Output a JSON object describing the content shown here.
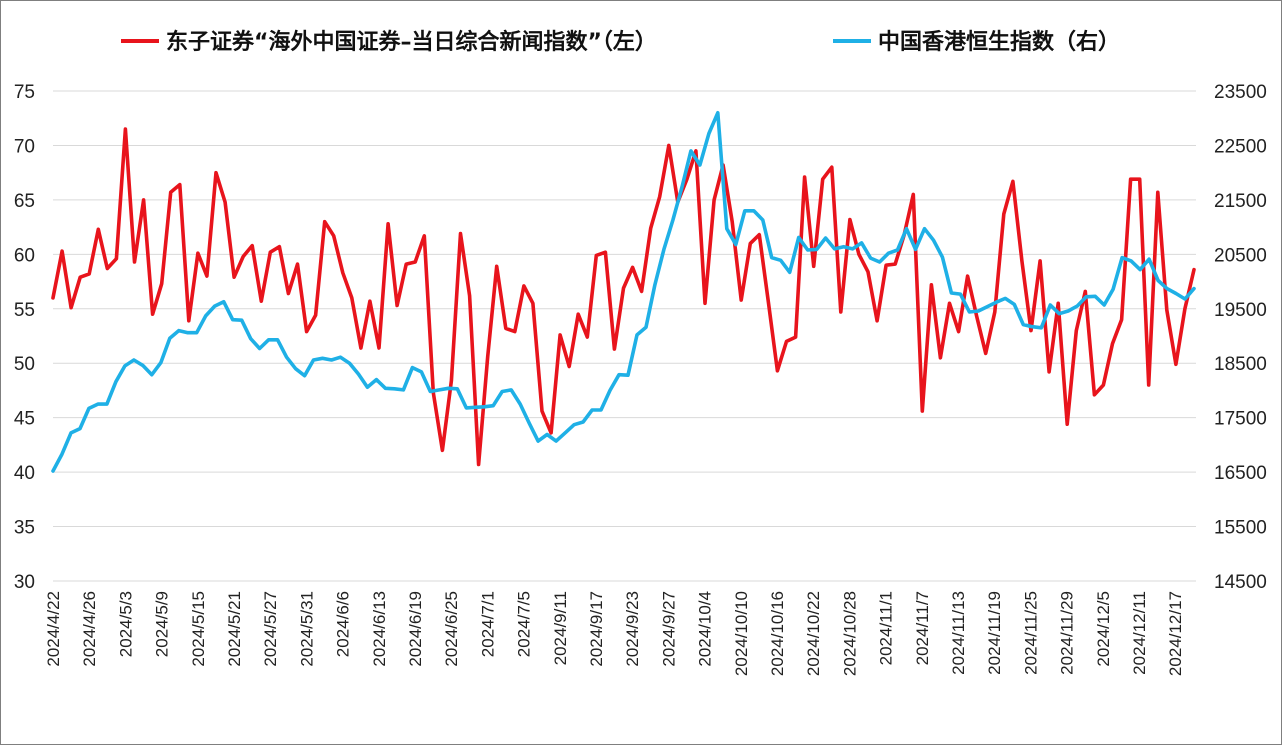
{
  "chart_data": {
    "type": "line",
    "legend_position": "top",
    "grid": true,
    "left_axis": {
      "min": 30,
      "max": 75,
      "ticks": [
        30,
        35,
        40,
        45,
        50,
        55,
        60,
        65,
        70,
        75
      ],
      "tick_labels": [
        "30",
        "35",
        "40",
        "45",
        "50",
        "55",
        "60",
        "65",
        "70",
        "75"
      ]
    },
    "right_axis": {
      "min": 14500,
      "max": 23500,
      "ticks": [
        14500,
        15500,
        16500,
        17500,
        18500,
        19500,
        20500,
        21500,
        22500,
        23500
      ],
      "tick_labels": [
        "14500",
        "15500",
        "16500",
        "17500",
        "18500",
        "19500",
        "20500",
        "21500",
        "22500",
        "23500"
      ]
    },
    "x_labels": [
      "2024/4/22",
      "2024/4/26",
      "2024/5/3",
      "2024/5/9",
      "2024/5/15",
      "2024/5/21",
      "2024/5/27",
      "2024/5/31",
      "2024/6/6",
      "2024/6/13",
      "2024/6/19",
      "2024/6/25",
      "2024/7/1",
      "2024/7/5",
      "2024/9/11",
      "2024/9/17",
      "2024/9/23",
      "2024/9/27",
      "2024/10/4",
      "2024/10/10",
      "2024/10/16",
      "2024/10/22",
      "2024/10/28",
      "2024/11/1",
      "2024/11/7",
      "2024/11/13",
      "2024/11/19",
      "2024/11/25",
      "2024/11/29",
      "2024/12/5",
      "2024/12/11",
      "2024/12/17"
    ],
    "series": [
      {
        "name": "东子证券“海外中国证券–当日综合新闻指数”（左）",
        "axis": "left",
        "color": "#e8141c",
        "values": [
          56.0,
          60.3,
          55.1,
          57.9,
          58.2,
          62.3,
          58.7,
          59.6,
          71.5,
          59.3,
          65.0,
          54.5,
          57.3,
          65.7,
          66.4,
          53.9,
          60.1,
          58.0,
          67.5,
          64.8,
          57.9,
          59.8,
          60.8,
          55.7,
          60.2,
          60.7,
          56.4,
          59.1,
          52.9,
          54.4,
          63.0,
          61.7,
          58.3,
          56.0,
          51.4,
          55.7,
          51.4,
          62.8,
          55.3,
          59.1,
          59.3,
          61.7,
          47.3,
          42.0,
          48.4,
          61.9,
          56.2,
          40.7,
          50.6,
          58.9,
          53.2,
          52.9,
          57.1,
          55.5,
          45.6,
          43.6,
          52.6,
          49.7,
          54.5,
          52.4,
          59.9,
          60.2,
          51.3,
          56.9,
          58.8,
          56.6,
          62.4,
          65.3,
          70.0,
          64.8,
          66.9,
          69.5,
          55.5,
          65.0,
          68.2,
          63.0,
          55.8,
          61.0,
          61.8,
          55.6,
          49.3,
          52.0,
          52.4,
          67.1,
          58.9,
          66.9,
          68.0,
          54.7,
          63.2,
          60.0,
          58.4,
          53.9,
          59.0,
          59.1,
          61.8,
          65.5,
          45.6,
          57.2,
          50.5,
          55.5,
          52.9,
          58.0,
          54.3,
          50.9,
          54.7,
          63.7,
          66.7,
          59.4,
          53.0,
          59.4,
          49.2,
          55.5,
          44.4,
          53.0,
          56.6,
          47.1,
          48.0,
          51.8,
          54.0,
          66.9,
          66.9,
          48.0,
          65.7,
          54.9,
          49.9,
          55.0,
          58.6
        ]
      },
      {
        "name": "中国香港恒生指数（右）",
        "axis": "right",
        "color": "#1fb0e6",
        "values": [
          16520,
          16830,
          17220,
          17300,
          17670,
          17750,
          17750,
          18160,
          18450,
          18560,
          18460,
          18290,
          18510,
          18960,
          19100,
          19060,
          19060,
          19370,
          19550,
          19630,
          19300,
          19290,
          18950,
          18770,
          18930,
          18930,
          18610,
          18400,
          18270,
          18560,
          18590,
          18560,
          18610,
          18500,
          18300,
          18060,
          18200,
          18040,
          18030,
          18010,
          18420,
          18340,
          17980,
          18010,
          18040,
          18030,
          17680,
          17690,
          17700,
          17720,
          17980,
          18010,
          17750,
          17400,
          17070,
          17190,
          17070,
          17220,
          17370,
          17420,
          17640,
          17640,
          18000,
          18290,
          18280,
          19020,
          19160,
          19940,
          20590,
          21130,
          21730,
          22400,
          22140,
          22720,
          23100,
          20970,
          20680,
          21300,
          21300,
          21130,
          20440,
          20390,
          20170,
          20810,
          20580,
          20590,
          20800,
          20600,
          20640,
          20600,
          20710,
          20430,
          20360,
          20520,
          20580,
          20970,
          20590,
          20970,
          20760,
          20450,
          19790,
          19770,
          19440,
          19460,
          19540,
          19620,
          19690,
          19580,
          19210,
          19170,
          19150,
          19570,
          19410,
          19460,
          19550,
          19720,
          19730,
          19570,
          19860,
          20440,
          20380,
          20220,
          20410,
          20020,
          19870,
          19780,
          19680,
          19870
        ]
      }
    ]
  }
}
